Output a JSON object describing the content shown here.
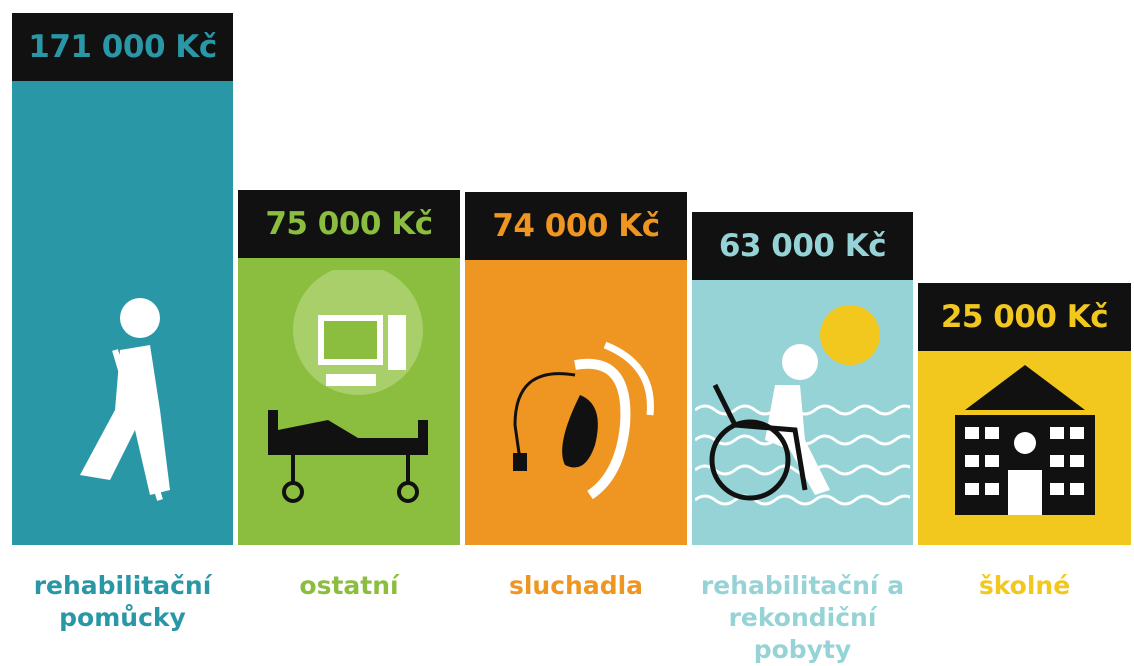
{
  "chart_data": {
    "type": "bar",
    "categories": [
      "rehabilitační pomůcky",
      "ostatní",
      "sluchadla",
      "rehabilitační a rekondiční pobyty",
      "školné"
    ],
    "values": [
      171000,
      75000,
      74000,
      63000,
      25000
    ],
    "value_labels": [
      "171 000 Kč",
      "75 000 Kč",
      "74 000 Kč",
      "63 000 Kč",
      "25 000 Kč"
    ],
    "colors": [
      "#2a97a6",
      "#8bbd3f",
      "#ef9622",
      "#96d3d6",
      "#f2c81e"
    ]
  }
}
